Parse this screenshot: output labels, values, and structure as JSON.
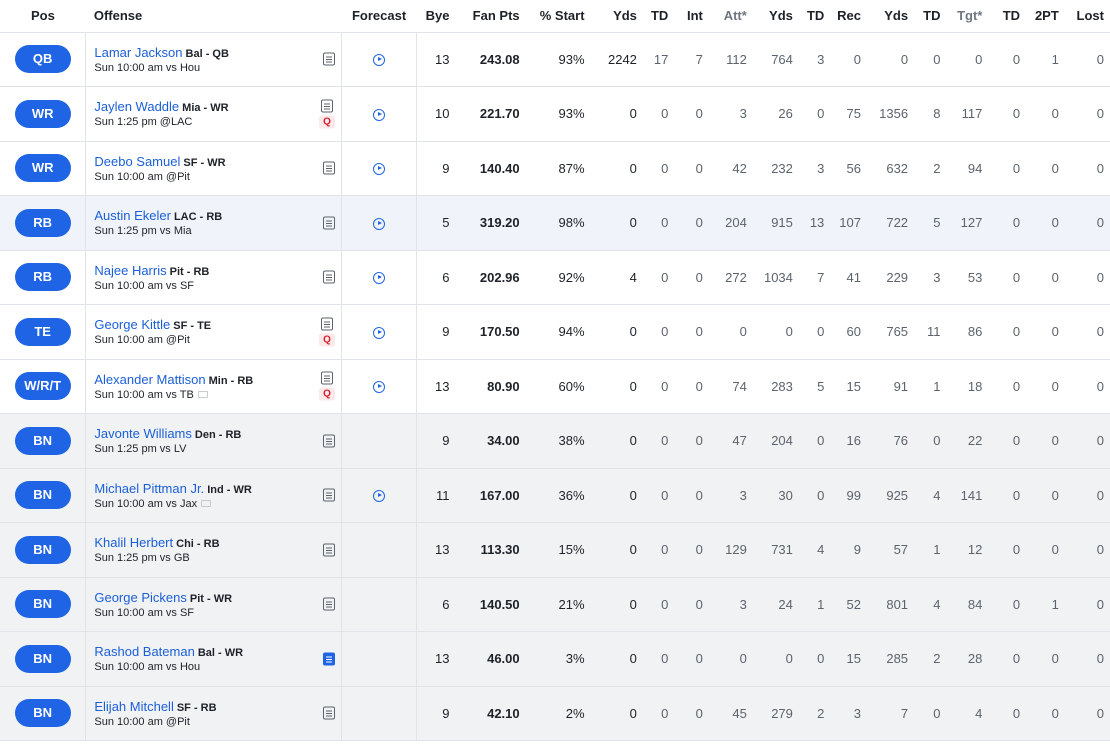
{
  "headers": {
    "pos": "Pos",
    "offense": "Offense",
    "forecast": "Forecast",
    "bye": "Bye",
    "fan_pts": "Fan Pts",
    "pct_start": "% Start",
    "pass_yds": "Yds",
    "pass_td": "TD",
    "int": "Int",
    "rush_att": "Att*",
    "rush_yds": "Yds",
    "rush_td": "TD",
    "rec": "Rec",
    "rec_yds": "Yds",
    "rec_td": "TD",
    "tgt": "Tgt*",
    "ret_td": "TD",
    "two_pt": "2PT",
    "lost": "Lost"
  },
  "rows": [
    {
      "pos": "QB",
      "name": "Lamar Jackson",
      "team": "Bal - QB",
      "game": "Sun 10:00 am vs Hou",
      "q": false,
      "forecast": true,
      "note_new": false,
      "tv": false,
      "bench": false,
      "highlight": false,
      "bye": "13",
      "pts": "243.08",
      "start": "93%",
      "s": [
        "2242",
        "17",
        "7",
        "112",
        "764",
        "3",
        "0",
        "0",
        "0",
        "0",
        "0",
        "1",
        "0"
      ]
    },
    {
      "pos": "WR",
      "name": "Jaylen Waddle",
      "team": "Mia - WR",
      "game": "Sun 1:25 pm @LAC",
      "q": true,
      "forecast": true,
      "note_new": false,
      "tv": false,
      "bench": false,
      "highlight": false,
      "bye": "10",
      "pts": "221.70",
      "start": "93%",
      "s": [
        "0",
        "0",
        "0",
        "3",
        "26",
        "0",
        "75",
        "1356",
        "8",
        "117",
        "0",
        "0",
        "0"
      ]
    },
    {
      "pos": "WR",
      "name": "Deebo Samuel",
      "team": "SF - WR",
      "game": "Sun 10:00 am @Pit",
      "q": false,
      "forecast": true,
      "note_new": false,
      "tv": false,
      "bench": false,
      "highlight": false,
      "bye": "9",
      "pts": "140.40",
      "start": "87%",
      "s": [
        "0",
        "0",
        "0",
        "42",
        "232",
        "3",
        "56",
        "632",
        "2",
        "94",
        "0",
        "0",
        "0"
      ]
    },
    {
      "pos": "RB",
      "name": "Austin Ekeler",
      "team": "LAC - RB",
      "game": "Sun 1:25 pm vs Mia",
      "q": false,
      "forecast": true,
      "note_new": false,
      "tv": false,
      "bench": false,
      "highlight": true,
      "bye": "5",
      "pts": "319.20",
      "start": "98%",
      "s": [
        "0",
        "0",
        "0",
        "204",
        "915",
        "13",
        "107",
        "722",
        "5",
        "127",
        "0",
        "0",
        "0"
      ]
    },
    {
      "pos": "RB",
      "name": "Najee Harris",
      "team": "Pit - RB",
      "game": "Sun 10:00 am vs SF",
      "q": false,
      "forecast": true,
      "note_new": false,
      "tv": false,
      "bench": false,
      "highlight": false,
      "bye": "6",
      "pts": "202.96",
      "start": "92%",
      "s": [
        "4",
        "0",
        "0",
        "272",
        "1034",
        "7",
        "41",
        "229",
        "3",
        "53",
        "0",
        "0",
        "0"
      ]
    },
    {
      "pos": "TE",
      "name": "George Kittle",
      "team": "SF - TE",
      "game": "Sun 10:00 am @Pit",
      "q": true,
      "forecast": true,
      "note_new": false,
      "tv": false,
      "bench": false,
      "highlight": false,
      "bye": "9",
      "pts": "170.50",
      "start": "94%",
      "s": [
        "0",
        "0",
        "0",
        "0",
        "0",
        "0",
        "60",
        "765",
        "11",
        "86",
        "0",
        "0",
        "0"
      ]
    },
    {
      "pos": "W/R/T",
      "name": "Alexander Mattison",
      "team": "Min - RB",
      "game": "Sun 10:00 am vs TB",
      "q": true,
      "forecast": true,
      "note_new": false,
      "tv": true,
      "bench": false,
      "highlight": false,
      "bye": "13",
      "pts": "80.90",
      "start": "60%",
      "s": [
        "0",
        "0",
        "0",
        "74",
        "283",
        "5",
        "15",
        "91",
        "1",
        "18",
        "0",
        "0",
        "0"
      ]
    },
    {
      "pos": "BN",
      "name": "Javonte Williams",
      "team": "Den - RB",
      "game": "Sun 1:25 pm vs LV",
      "q": false,
      "forecast": false,
      "note_new": false,
      "tv": false,
      "bench": true,
      "highlight": false,
      "bye": "9",
      "pts": "34.00",
      "start": "38%",
      "s": [
        "0",
        "0",
        "0",
        "47",
        "204",
        "0",
        "16",
        "76",
        "0",
        "22",
        "0",
        "0",
        "0"
      ]
    },
    {
      "pos": "BN",
      "name": "Michael Pittman Jr.",
      "team": "Ind - WR",
      "game": "Sun 10:00 am vs Jax",
      "q": false,
      "forecast": true,
      "note_new": false,
      "tv": true,
      "bench": true,
      "highlight": false,
      "bye": "11",
      "pts": "167.00",
      "start": "36%",
      "s": [
        "0",
        "0",
        "0",
        "3",
        "30",
        "0",
        "99",
        "925",
        "4",
        "141",
        "0",
        "0",
        "0"
      ]
    },
    {
      "pos": "BN",
      "name": "Khalil Herbert",
      "team": "Chi - RB",
      "game": "Sun 1:25 pm vs GB",
      "q": false,
      "forecast": false,
      "note_new": false,
      "tv": false,
      "bench": true,
      "highlight": false,
      "bye": "13",
      "pts": "113.30",
      "start": "15%",
      "s": [
        "0",
        "0",
        "0",
        "129",
        "731",
        "4",
        "9",
        "57",
        "1",
        "12",
        "0",
        "0",
        "0"
      ]
    },
    {
      "pos": "BN",
      "name": "George Pickens",
      "team": "Pit - WR",
      "game": "Sun 10:00 am vs SF",
      "q": false,
      "forecast": false,
      "note_new": false,
      "tv": false,
      "bench": true,
      "highlight": false,
      "bye": "6",
      "pts": "140.50",
      "start": "21%",
      "s": [
        "0",
        "0",
        "0",
        "3",
        "24",
        "1",
        "52",
        "801",
        "4",
        "84",
        "0",
        "1",
        "0"
      ]
    },
    {
      "pos": "BN",
      "name": "Rashod Bateman",
      "team": "Bal - WR",
      "game": "Sun 10:00 am vs Hou",
      "q": false,
      "forecast": false,
      "note_new": true,
      "tv": false,
      "bench": true,
      "highlight": false,
      "bye": "13",
      "pts": "46.00",
      "start": "3%",
      "s": [
        "0",
        "0",
        "0",
        "0",
        "0",
        "0",
        "15",
        "285",
        "2",
        "28",
        "0",
        "0",
        "0"
      ]
    },
    {
      "pos": "BN",
      "name": "Elijah Mitchell",
      "team": "SF - RB",
      "game": "Sun 10:00 am @Pit",
      "q": false,
      "forecast": false,
      "note_new": false,
      "tv": false,
      "bench": true,
      "highlight": false,
      "bye": "9",
      "pts": "42.10",
      "start": "2%",
      "s": [
        "0",
        "0",
        "0",
        "45",
        "279",
        "2",
        "3",
        "7",
        "0",
        "4",
        "0",
        "0",
        "0"
      ]
    }
  ],
  "q_label": "Q",
  "colors": {
    "accent": "#1f64e4",
    "link": "#1b5fd8",
    "injury": "#d21f2b",
    "bench_bg": "#f1f2f4"
  }
}
